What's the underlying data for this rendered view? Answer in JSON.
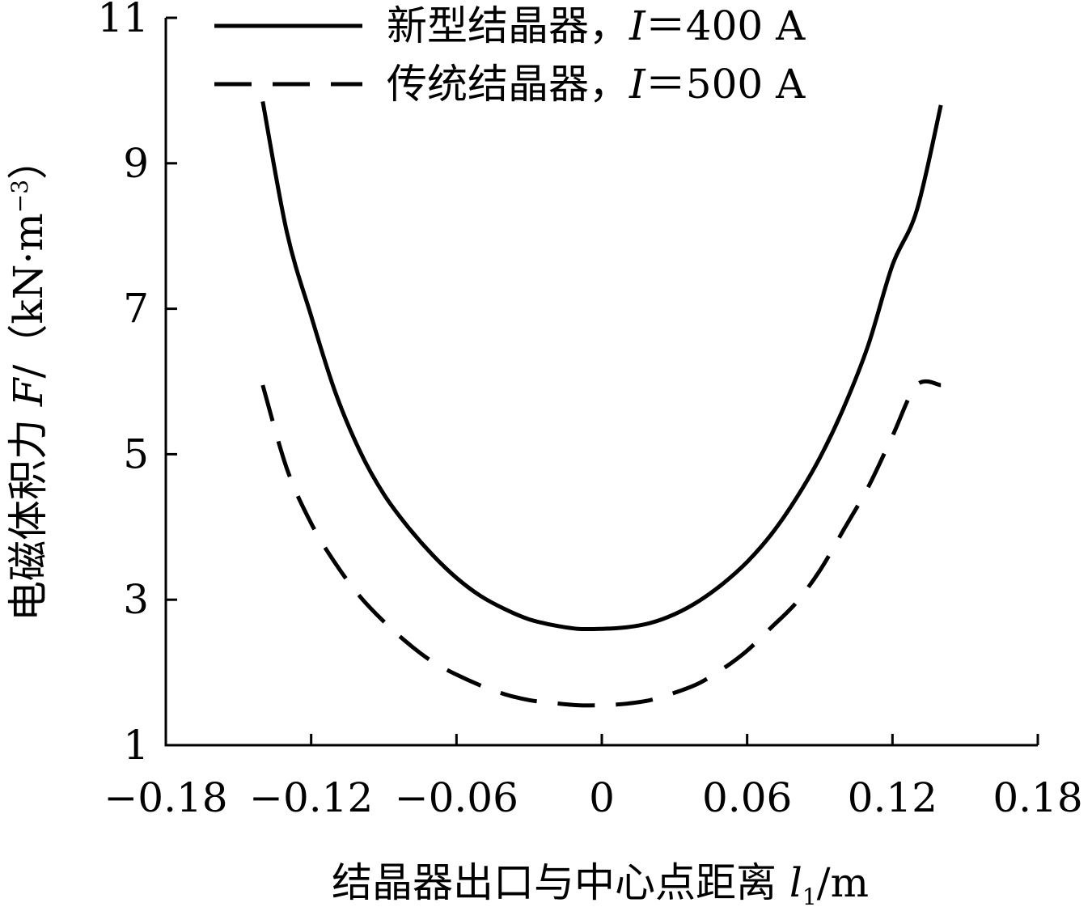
{
  "chart_data": {
    "type": "line",
    "title": "",
    "xlabel": "结晶器出口与中心点距离 l1 /m",
    "xlabel_parts": {
      "main": "结晶器出口与中心点距离 ",
      "var": "l",
      "sub": "1",
      "unit": "/m"
    },
    "ylabel": "电磁体积力 F/（kN·m⁻³）",
    "ylabel_parts": {
      "main": "电磁体积力 ",
      "var": "F",
      "unit": "/（kN·m",
      "exp": "−3",
      "close": "）"
    },
    "xlim": [
      -0.18,
      0.18
    ],
    "ylim": [
      1,
      11
    ],
    "xticks": [
      -0.18,
      -0.12,
      -0.06,
      0,
      0.06,
      0.12,
      0.18
    ],
    "xtick_labels": [
      "−0.18",
      "−0.12",
      "−0.06",
      "0",
      "0.06",
      "0.12",
      "0.18"
    ],
    "yticks": [
      1,
      3,
      5,
      7,
      9,
      11
    ],
    "ytick_labels": [
      "1",
      "3",
      "5",
      "7",
      "9",
      "11"
    ],
    "grid": false,
    "legend_position": "top-left",
    "series": [
      {
        "name": "新型结晶器，I＝400 A",
        "legend_main": "新型结晶器，",
        "legend_var": "I",
        "legend_rest": "＝400 A",
        "style": "solid",
        "color": "#000000",
        "x": [
          -0.14,
          -0.13,
          -0.12,
          -0.11,
          -0.1,
          -0.09,
          -0.08,
          -0.07,
          -0.06,
          -0.05,
          -0.04,
          -0.03,
          -0.02,
          -0.01,
          0,
          0.01,
          0.02,
          0.03,
          0.04,
          0.05,
          0.06,
          0.07,
          0.08,
          0.09,
          0.1,
          0.11,
          0.12,
          0.13,
          0.14
        ],
        "y": [
          9.85,
          8.05,
          6.9,
          5.85,
          5.05,
          4.45,
          4.0,
          3.62,
          3.3,
          3.05,
          2.87,
          2.73,
          2.65,
          2.6,
          2.6,
          2.62,
          2.68,
          2.8,
          2.98,
          3.22,
          3.52,
          3.9,
          4.38,
          4.95,
          5.65,
          6.5,
          7.6,
          8.35,
          9.8
        ]
      },
      {
        "name": "传统结晶器，I＝500 A",
        "legend_main": "传统结晶器，",
        "legend_var": "I",
        "legend_rest": "＝500 A",
        "style": "dashed",
        "color": "#000000",
        "x": [
          -0.14,
          -0.13,
          -0.12,
          -0.11,
          -0.1,
          -0.09,
          -0.08,
          -0.07,
          -0.06,
          -0.05,
          -0.04,
          -0.03,
          -0.02,
          -0.01,
          0,
          0.01,
          0.02,
          0.03,
          0.04,
          0.05,
          0.06,
          0.07,
          0.08,
          0.09,
          0.1,
          0.11,
          0.12,
          0.13,
          0.14
        ],
        "y": [
          5.95,
          4.8,
          4.05,
          3.5,
          3.05,
          2.7,
          2.4,
          2.15,
          1.97,
          1.82,
          1.7,
          1.62,
          1.58,
          1.55,
          1.55,
          1.57,
          1.62,
          1.72,
          1.85,
          2.05,
          2.3,
          2.62,
          2.95,
          3.4,
          3.97,
          4.55,
          5.25,
          5.95,
          5.95
        ]
      }
    ]
  }
}
